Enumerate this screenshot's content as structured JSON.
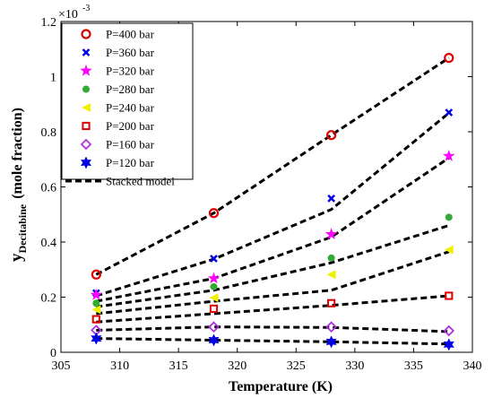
{
  "chart_data": {
    "type": "scatter",
    "xlabel": "Temperature (K)",
    "ylabel_main": "y",
    "ylabel_sub": "Decitabine",
    "ylabel_rest": "(mole fraction)",
    "y_multiplier": "×10",
    "y_multiplier_exp": "-3",
    "xlim": [
      305,
      340
    ],
    "ylim": [
      0,
      1.2
    ],
    "xticks": [
      "305",
      "310",
      "315",
      "320",
      "325",
      "330",
      "335",
      "340"
    ],
    "yticks": [
      "0",
      "0.2",
      "0.4",
      "0.6",
      "0.8",
      "1",
      "1.2"
    ],
    "x": [
      308,
      318,
      328,
      338
    ],
    "series": [
      {
        "name": "P=400 bar",
        "marker": "circle",
        "color": "#e00000",
        "values": [
          0.282,
          0.505,
          0.788,
          1.068
        ]
      },
      {
        "name": "P=360 bar",
        "marker": "x",
        "color": "#0000e6",
        "values": [
          0.215,
          0.34,
          0.558,
          0.87
        ]
      },
      {
        "name": "P=320 bar",
        "marker": "star",
        "color": "#ff00ff",
        "values": [
          0.208,
          0.268,
          0.428,
          0.712
        ]
      },
      {
        "name": "P=280 bar",
        "marker": "dot",
        "color": "#33aa33",
        "values": [
          0.178,
          0.238,
          0.342,
          0.49
        ]
      },
      {
        "name": "P=240 bar",
        "marker": "triangle-left",
        "color": "#f0f000",
        "values": [
          0.155,
          0.198,
          0.282,
          0.372
        ]
      },
      {
        "name": "P=200 bar",
        "marker": "square",
        "color": "#e00000",
        "values": [
          0.12,
          0.158,
          0.178,
          0.205
        ]
      },
      {
        "name": "P=160 bar",
        "marker": "diamond",
        "color": "#b030e0",
        "values": [
          0.08,
          0.092,
          0.092,
          0.078
        ]
      },
      {
        "name": "P=120 bar",
        "marker": "hexagram",
        "color": "#0000e6",
        "values": [
          0.05,
          0.044,
          0.038,
          0.028
        ]
      }
    ],
    "model": {
      "name": "Stacked model",
      "color": "#000000",
      "lines": [
        [
          0.282,
          0.505,
          0.788,
          1.068
        ],
        [
          0.205,
          0.338,
          0.518,
          0.868
        ],
        [
          0.185,
          0.268,
          0.418,
          0.705
        ],
        [
          0.165,
          0.225,
          0.325,
          0.46
        ],
        [
          0.14,
          0.185,
          0.225,
          0.365
        ],
        [
          0.11,
          0.14,
          0.17,
          0.205
        ],
        [
          0.08,
          0.092,
          0.09,
          0.075
        ],
        [
          0.05,
          0.044,
          0.038,
          0.03
        ]
      ]
    }
  }
}
